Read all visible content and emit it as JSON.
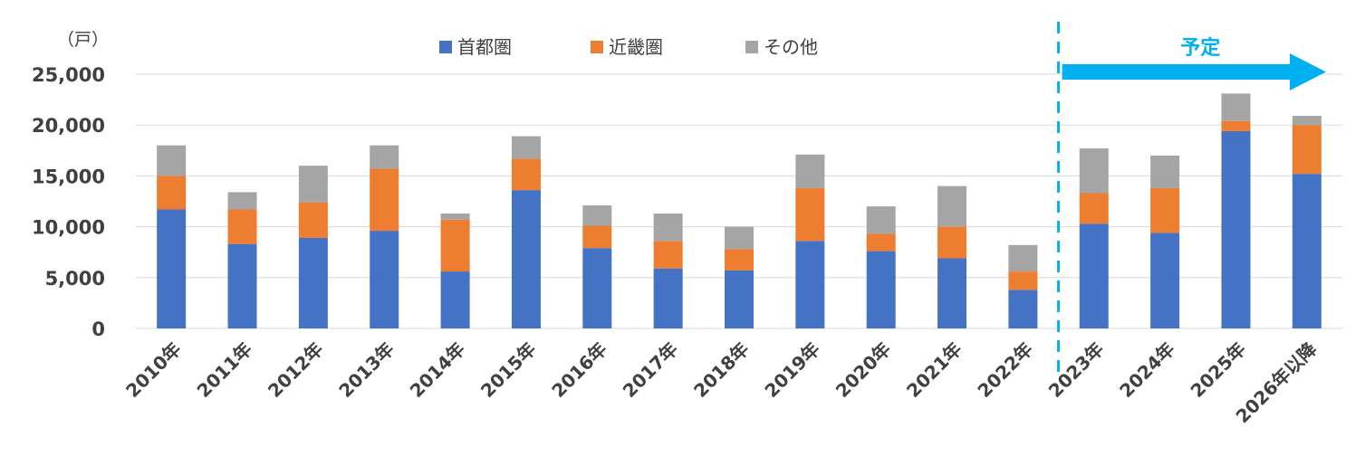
{
  "chart_data": {
    "type": "bar",
    "stacked": true,
    "unit_label": "（戸）",
    "categories": [
      "2010年",
      "2011年",
      "2012年",
      "2013年",
      "2014年",
      "2015年",
      "2016年",
      "2017年",
      "2018年",
      "2019年",
      "2020年",
      "2021年",
      "2022年",
      "2023年",
      "2024年",
      "2025年",
      "2026年以降"
    ],
    "series": [
      {
        "name": "首都圏",
        "color": "#4472c4",
        "values": [
          11700,
          8300,
          8900,
          9600,
          5600,
          13600,
          7900,
          5900,
          5700,
          8600,
          7600,
          6900,
          3800,
          10300,
          9400,
          19400,
          15200
        ]
      },
      {
        "name": "近畿圏",
        "color": "#ed7d31",
        "values": [
          3300,
          3400,
          3500,
          6100,
          5100,
          3100,
          2200,
          2700,
          2100,
          5200,
          1700,
          3100,
          1800,
          3000,
          4400,
          1000,
          4800
        ]
      },
      {
        "name": "その他",
        "color": "#a5a5a5",
        "values": [
          3000,
          1700,
          3600,
          2300,
          600,
          2200,
          2000,
          2700,
          2200,
          3300,
          2700,
          4000,
          2600,
          4400,
          3200,
          2700,
          900
        ]
      }
    ],
    "ylim": [
      0,
      25000
    ],
    "yticks": [
      "0",
      "5,000",
      "10,000",
      "15,000",
      "20,000",
      "25,000"
    ],
    "ytick_values": [
      0,
      5000,
      10000,
      15000,
      20000,
      25000
    ],
    "grid": true,
    "legend_position": "top-center",
    "annotation": {
      "text": "予定",
      "color": "#00b0f0",
      "divider_after_category": "2022年"
    }
  }
}
